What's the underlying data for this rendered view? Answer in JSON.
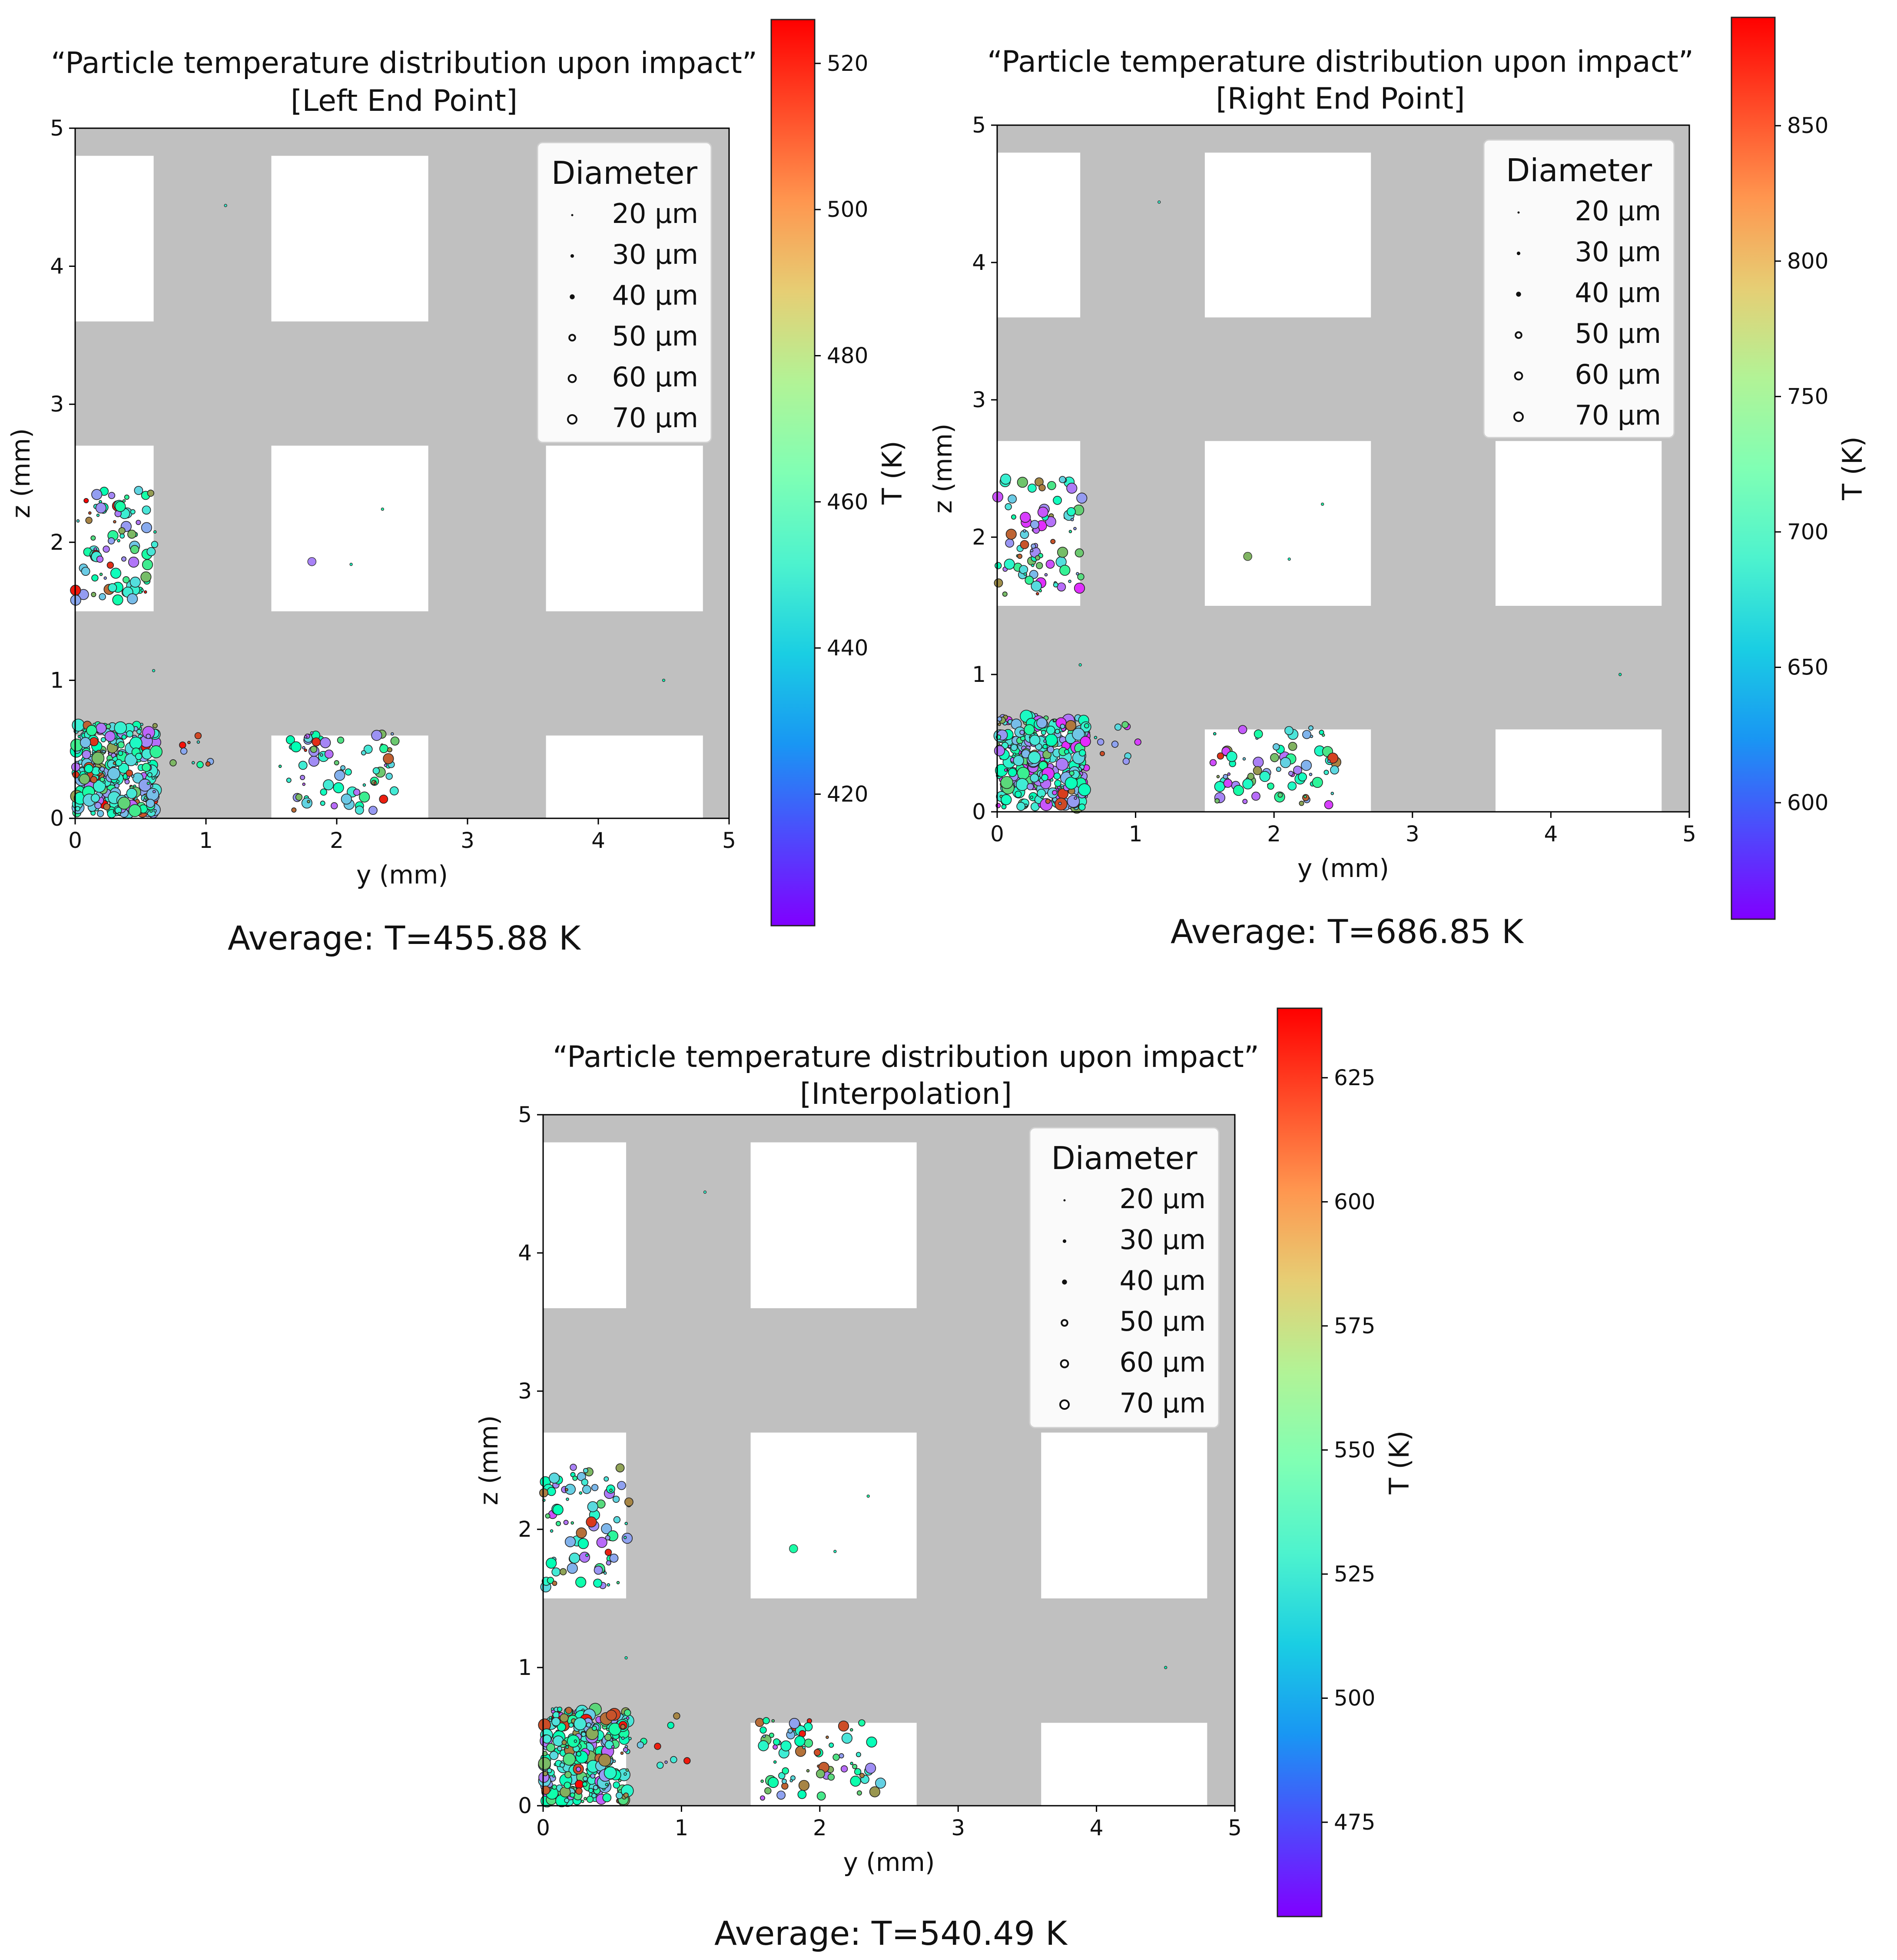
{
  "figure": {
    "panels": [
      {
        "id": "left",
        "title_line1": "“Particle temperature distribution upon impact”",
        "title_line2": "[Left End Point]",
        "average_label": "Average: T=455.88 K"
      },
      {
        "id": "right",
        "title_line1": "“Particle temperature distribution upon impact”",
        "title_line2": "[Right End Point]",
        "average_label": "Average: T=686.85 K"
      },
      {
        "id": "interp",
        "title_line1": "“Particle temperature distribution upon impact”",
        "title_line2": "[Interpolation]",
        "average_label": "Average: T=540.49 K"
      }
    ]
  },
  "chart_data": [
    {
      "type": "scatter",
      "title": "“Particle temperature distribution upon impact” [Left End Point]",
      "xlabel": "y (mm)",
      "ylabel": "z (mm)",
      "xlim": [
        0,
        5
      ],
      "ylim": [
        0,
        5
      ],
      "xticks": [
        0,
        1,
        2,
        3,
        4,
        5
      ],
      "yticks": [
        0,
        1,
        2,
        3,
        4,
        5
      ],
      "background_color": "#c0c0c0",
      "cutouts": [
        {
          "y0": 0,
          "y1": 0.6,
          "z0": 3.6,
          "z1": 4.8
        },
        {
          "y0": 1.5,
          "y1": 2.7,
          "z0": 3.6,
          "z1": 4.8
        },
        {
          "y0": 0,
          "y1": 0.6,
          "z0": 1.5,
          "z1": 2.7
        },
        {
          "y0": 1.5,
          "y1": 2.7,
          "z0": 1.5,
          "z1": 2.7
        },
        {
          "y0": 3.6,
          "y1": 4.8,
          "z0": 1.5,
          "z1": 2.7
        },
        {
          "y0": 0,
          "y1": 0.6,
          "z0": 0,
          "z1": 0.6
        },
        {
          "y0": 1.5,
          "y1": 2.7,
          "z0": 0,
          "z1": 0.6
        },
        {
          "y0": 3.6,
          "y1": 4.8,
          "z0": 0,
          "z1": 0.6
        }
      ],
      "legend": {
        "title": "Diameter",
        "position": "top-right",
        "entries": [
          "20 µm",
          "30 µm",
          "40 µm",
          "50 µm",
          "60 µm",
          "70 µm"
        ]
      },
      "colorbar": {
        "label": "T (K)",
        "colormap": "rainbow",
        "min": 402,
        "max": 526,
        "ticks": [
          420,
          440,
          460,
          480,
          500,
          520
        ]
      },
      "isolated_points": [
        {
          "y": 1.15,
          "z": 4.44,
          "d": 20,
          "t": 0.4
        },
        {
          "y": 1.81,
          "z": 1.86,
          "d": 50,
          "t": 0.17
        },
        {
          "y": 2.11,
          "z": 1.84,
          "d": 20,
          "t": 0.45
        },
        {
          "y": 2.35,
          "z": 2.24,
          "d": 20,
          "t": 0.55
        },
        {
          "y": 0.6,
          "z": 1.07,
          "d": 20,
          "t": 0.45
        },
        {
          "y": 4.5,
          "z": 1.0,
          "d": 20,
          "t": 0.5
        }
      ],
      "clusters": [
        {
          "y0": 0.0,
          "y1": 0.62,
          "z0": 0.03,
          "z1": 0.68,
          "n": 320,
          "dmax": 70,
          "tmode": "left"
        },
        {
          "y0": 0.62,
          "y1": 1.05,
          "z0": 0.25,
          "z1": 0.65,
          "n": 10,
          "dmax": 40,
          "tmode": "left"
        },
        {
          "y0": 1.55,
          "y1": 2.45,
          "z0": 0.05,
          "z1": 0.62,
          "n": 75,
          "dmax": 60,
          "tmode": "left"
        },
        {
          "y0": 0.0,
          "y1": 0.62,
          "z0": 1.58,
          "z1": 2.4,
          "n": 85,
          "dmax": 60,
          "tmode": "left"
        }
      ],
      "average_temperature_K": 455.88
    },
    {
      "type": "scatter",
      "title": "“Particle temperature distribution upon impact” [Right End Point]",
      "xlabel": "y (mm)",
      "ylabel": "z (mm)",
      "xlim": [
        0,
        5
      ],
      "ylim": [
        0,
        5
      ],
      "xticks": [
        0,
        1,
        2,
        3,
        4,
        5
      ],
      "yticks": [
        0,
        1,
        2,
        3,
        4,
        5
      ],
      "background_color": "#c0c0c0",
      "cutouts": [
        {
          "y0": 0,
          "y1": 0.6,
          "z0": 3.6,
          "z1": 4.8
        },
        {
          "y0": 1.5,
          "y1": 2.7,
          "z0": 3.6,
          "z1": 4.8
        },
        {
          "y0": 0,
          "y1": 0.6,
          "z0": 1.5,
          "z1": 2.7
        },
        {
          "y0": 1.5,
          "y1": 2.7,
          "z0": 1.5,
          "z1": 2.7
        },
        {
          "y0": 3.6,
          "y1": 4.8,
          "z0": 1.5,
          "z1": 2.7
        },
        {
          "y0": 0,
          "y1": 0.6,
          "z0": 0,
          "z1": 0.6
        },
        {
          "y0": 1.5,
          "y1": 2.7,
          "z0": 0,
          "z1": 0.6
        },
        {
          "y0": 3.6,
          "y1": 4.8,
          "z0": 0,
          "z1": 0.6
        }
      ],
      "legend": {
        "title": "Diameter",
        "position": "top-right",
        "entries": [
          "20 µm",
          "30 µm",
          "40 µm",
          "50 µm",
          "60 µm",
          "70 µm"
        ]
      },
      "colorbar": {
        "label": "T (K)",
        "colormap": "rainbow",
        "min": 557,
        "max": 890,
        "ticks": [
          600,
          650,
          700,
          750,
          800,
          850
        ]
      },
      "isolated_points": [
        {
          "y": 1.17,
          "z": 4.44,
          "d": 20,
          "t": 0.4
        },
        {
          "y": 1.81,
          "z": 1.86,
          "d": 50,
          "t": 0.75
        },
        {
          "y": 2.11,
          "z": 1.84,
          "d": 20,
          "t": 0.45
        },
        {
          "y": 2.35,
          "z": 2.24,
          "d": 20,
          "t": 0.55
        },
        {
          "y": 0.6,
          "z": 1.07,
          "d": 20,
          "t": 0.45
        },
        {
          "y": 4.5,
          "z": 1.0,
          "d": 20,
          "t": 0.5
        }
      ],
      "clusters": [
        {
          "y0": 0.0,
          "y1": 0.65,
          "z0": 0.03,
          "z1": 0.7,
          "n": 320,
          "dmax": 70,
          "tmode": "right"
        },
        {
          "y0": 0.65,
          "y1": 1.05,
          "z0": 0.25,
          "z1": 0.65,
          "n": 10,
          "dmax": 40,
          "tmode": "right"
        },
        {
          "y0": 1.55,
          "y1": 2.45,
          "z0": 0.05,
          "z1": 0.62,
          "n": 75,
          "dmax": 60,
          "tmode": "right"
        },
        {
          "y0": 0.0,
          "y1": 0.62,
          "z0": 1.58,
          "z1": 2.45,
          "n": 85,
          "dmax": 60,
          "tmode": "right"
        }
      ],
      "average_temperature_K": 686.85
    },
    {
      "type": "scatter",
      "title": "“Particle temperature distribution upon impact” [Interpolation]",
      "xlabel": "y (mm)",
      "ylabel": "z (mm)",
      "xlim": [
        0,
        5
      ],
      "ylim": [
        0,
        5
      ],
      "xticks": [
        0,
        1,
        2,
        3,
        4,
        5
      ],
      "yticks": [
        0,
        1,
        2,
        3,
        4,
        5
      ],
      "background_color": "#c0c0c0",
      "cutouts": [
        {
          "y0": 0,
          "y1": 0.6,
          "z0": 3.6,
          "z1": 4.8
        },
        {
          "y0": 1.5,
          "y1": 2.7,
          "z0": 3.6,
          "z1": 4.8
        },
        {
          "y0": 0,
          "y1": 0.6,
          "z0": 1.5,
          "z1": 2.7
        },
        {
          "y0": 1.5,
          "y1": 2.7,
          "z0": 1.5,
          "z1": 2.7
        },
        {
          "y0": 3.6,
          "y1": 4.8,
          "z0": 1.5,
          "z1": 2.7
        },
        {
          "y0": 0,
          "y1": 0.6,
          "z0": 0,
          "z1": 0.6
        },
        {
          "y0": 1.5,
          "y1": 2.7,
          "z0": 0,
          "z1": 0.6
        },
        {
          "y0": 3.6,
          "y1": 4.8,
          "z0": 0,
          "z1": 0.6
        }
      ],
      "legend": {
        "title": "Diameter",
        "position": "top-right",
        "entries": [
          "20 µm",
          "30 µm",
          "40 µm",
          "50 µm",
          "60 µm",
          "70 µm"
        ]
      },
      "colorbar": {
        "label": "T (K)",
        "colormap": "rainbow",
        "min": 456,
        "max": 639,
        "ticks": [
          475,
          500,
          525,
          550,
          575,
          600,
          625
        ]
      },
      "isolated_points": [
        {
          "y": 1.17,
          "z": 4.44,
          "d": 20,
          "t": 0.4
        },
        {
          "y": 1.81,
          "z": 1.86,
          "d": 50,
          "t": 0.55
        },
        {
          "y": 2.11,
          "z": 1.84,
          "d": 20,
          "t": 0.45
        },
        {
          "y": 2.35,
          "z": 2.24,
          "d": 20,
          "t": 0.55
        },
        {
          "y": 0.6,
          "z": 1.07,
          "d": 20,
          "t": 0.45
        },
        {
          "y": 4.5,
          "z": 1.0,
          "d": 20,
          "t": 0.5
        }
      ],
      "clusters": [
        {
          "y0": 0.0,
          "y1": 0.62,
          "z0": 0.03,
          "z1": 0.7,
          "n": 320,
          "dmax": 70,
          "tmode": "interp"
        },
        {
          "y0": 0.62,
          "y1": 1.05,
          "z0": 0.25,
          "z1": 0.65,
          "n": 10,
          "dmax": 40,
          "tmode": "interp"
        },
        {
          "y0": 1.55,
          "y1": 2.45,
          "z0": 0.05,
          "z1": 0.62,
          "n": 75,
          "dmax": 60,
          "tmode": "interp"
        },
        {
          "y0": 0.0,
          "y1": 0.62,
          "z0": 1.58,
          "z1": 2.45,
          "n": 85,
          "dmax": 60,
          "tmode": "interp"
        }
      ],
      "average_temperature_K": 540.49
    }
  ]
}
